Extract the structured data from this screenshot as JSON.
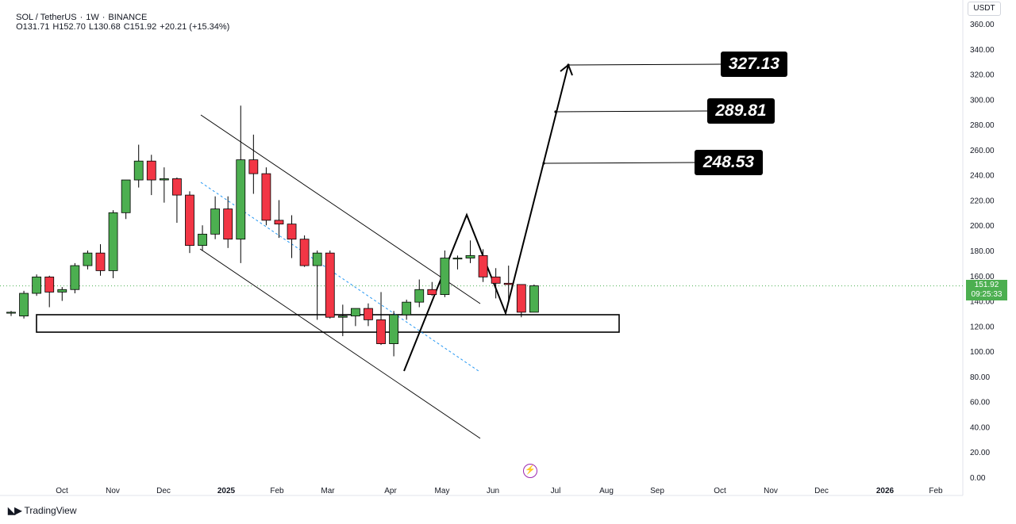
{
  "header": {
    "symbol": "SOL / TetherUS",
    "interval": "1W",
    "exchange": "BINANCE",
    "open": "O131.71",
    "high": "H152.70",
    "low": "L130.68",
    "close": "C151.92",
    "change": "+20.21 (+15.34%)",
    "separator": "·"
  },
  "axis_unit": "USDT",
  "current_price": {
    "value": "151.92",
    "countdown": "09:25:33"
  },
  "targets": [
    "327.13",
    "289.81",
    "248.53"
  ],
  "brand": "TradingView",
  "colors": {
    "up": "#4caf50",
    "down": "#f23645",
    "grid": "#f0f3fa",
    "text": "#131722",
    "accent_purple": "#9c27b0",
    "channel_dashed": "#2196f3"
  },
  "chart_data": {
    "type": "candlestick",
    "interval": "1W",
    "y_axis": {
      "min": 0,
      "max": 360,
      "ticks": [
        "0.00",
        "20.00",
        "40.00",
        "60.00",
        "80.00",
        "100.00",
        "120.00",
        "140.00",
        "160.00",
        "180.00",
        "200.00",
        "220.00",
        "240.00",
        "260.00",
        "280.00",
        "300.00",
        "320.00",
        "340.00",
        "360.00"
      ]
    },
    "x_labels": [
      "Oct",
      "Nov",
      "Dec",
      "2025",
      "Feb",
      "Mar",
      "Apr",
      "May",
      "Jun",
      "Jul",
      "Aug",
      "Sep",
      "Oct",
      "Nov",
      "Dec",
      "2026",
      "Feb"
    ],
    "candles": [
      [
        131,
        132,
        128,
        131
      ],
      [
        128,
        148,
        126,
        146
      ],
      [
        146,
        161,
        144,
        159
      ],
      [
        159,
        160,
        135,
        147
      ],
      [
        147,
        151,
        140,
        149
      ],
      [
        149,
        170,
        146,
        168
      ],
      [
        168,
        180,
        165,
        178
      ],
      [
        178,
        185,
        160,
        164
      ],
      [
        164,
        212,
        158,
        210
      ],
      [
        210,
        236,
        205,
        236
      ],
      [
        236,
        264,
        230,
        251
      ],
      [
        251,
        256,
        224,
        236
      ],
      [
        236,
        246,
        218,
        237
      ],
      [
        237,
        238,
        202,
        224
      ],
      [
        224,
        227,
        178,
        184
      ],
      [
        184,
        200,
        180,
        193
      ],
      [
        193,
        223,
        189,
        213
      ],
      [
        213,
        223,
        182,
        189
      ],
      [
        189,
        295,
        170,
        252
      ],
      [
        252,
        272,
        225,
        241
      ],
      [
        241,
        246,
        200,
        204
      ],
      [
        204,
        220,
        190,
        201
      ],
      [
        201,
        208,
        174,
        189
      ],
      [
        189,
        192,
        167,
        168
      ],
      [
        168,
        180,
        125,
        178
      ],
      [
        178,
        180,
        126,
        127
      ],
      [
        127,
        137,
        112,
        128
      ],
      [
        128,
        134,
        120,
        134
      ],
      [
        134,
        138,
        120,
        125
      ],
      [
        125,
        147,
        105,
        106
      ],
      [
        106,
        132,
        96,
        129
      ],
      [
        129,
        141,
        125,
        139
      ],
      [
        139,
        157,
        135,
        149
      ],
      [
        149,
        155,
        144,
        145
      ],
      [
        145,
        180,
        143,
        174
      ],
      [
        174,
        176,
        165,
        174
      ],
      [
        174,
        188,
        170,
        176
      ],
      [
        176,
        181,
        155,
        159
      ],
      [
        159,
        166,
        142,
        154
      ],
      [
        154,
        168,
        140,
        153
      ],
      [
        153,
        153,
        127,
        131
      ],
      [
        131,
        153,
        131,
        152
      ]
    ],
    "candle_format": [
      "open",
      "high",
      "low",
      "close"
    ]
  }
}
